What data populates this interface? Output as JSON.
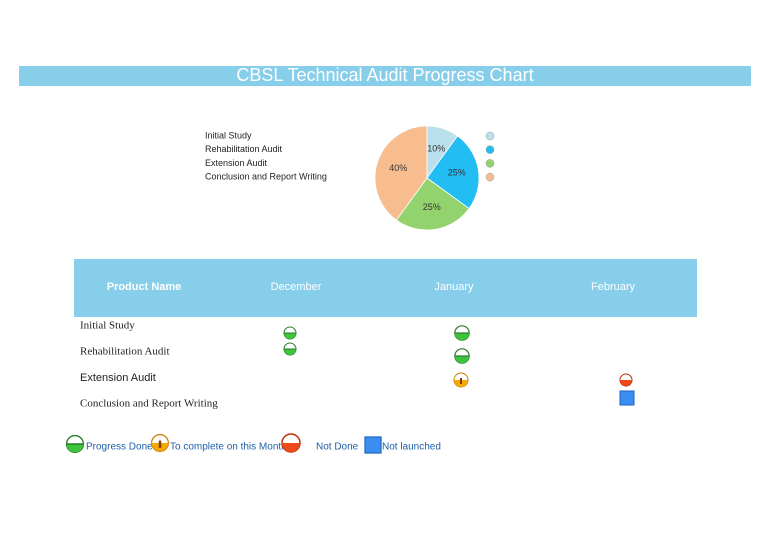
{
  "title": "CBSL Technical Audit Progress Chart",
  "chart_data": {
    "type": "pie",
    "categories": [
      "Initial Study",
      "Rehabilitation Audit",
      "Extension Audit",
      "Conclusion and Report Writing"
    ],
    "values": [
      10,
      25,
      25,
      40
    ],
    "value_labels": [
      "10%",
      "25%",
      "25%",
      "40%"
    ],
    "colors": [
      "#b9e0ec",
      "#22bdf2",
      "#92d36e",
      "#f7bd8f"
    ]
  },
  "table": {
    "header": [
      "Product Name",
      "December",
      "January",
      "February"
    ],
    "rows": [
      "Initial Study",
      "Rehabilitation Audit",
      "Extension Audit",
      "Conclusion and Report Writing"
    ]
  },
  "legend": [
    "Progress Done",
    "To complete on this Month",
    "Not Done",
    "Not launched"
  ]
}
